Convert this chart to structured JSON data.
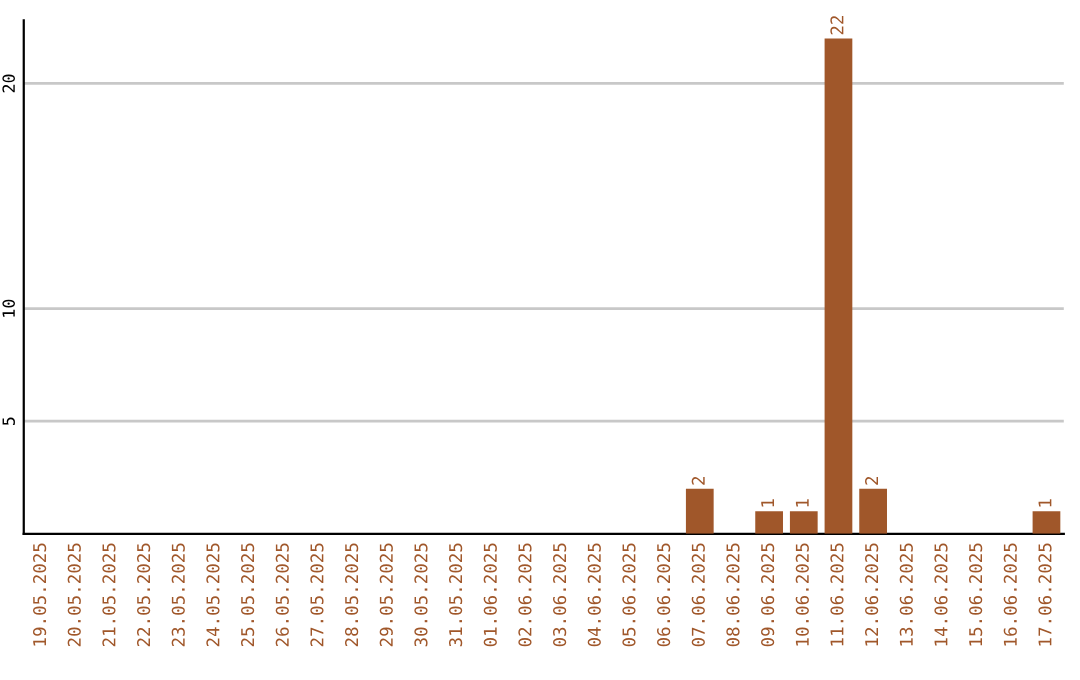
{
  "chart_data": {
    "type": "bar",
    "categories": [
      "19.05.2025",
      "20.05.2025",
      "21.05.2025",
      "22.05.2025",
      "23.05.2025",
      "24.05.2025",
      "25.05.2025",
      "26.05.2025",
      "27.05.2025",
      "28.05.2025",
      "29.05.2025",
      "30.05.2025",
      "31.05.2025",
      "01.06.2025",
      "02.06.2025",
      "03.06.2025",
      "04.06.2025",
      "05.06.2025",
      "06.06.2025",
      "07.06.2025",
      "08.06.2025",
      "09.06.2025",
      "10.06.2025",
      "11.06.2025",
      "12.06.2025",
      "13.06.2025",
      "14.06.2025",
      "15.06.2025",
      "16.06.2025",
      "17.06.2025"
    ],
    "values": [
      0,
      0,
      0,
      0,
      0,
      0,
      0,
      0,
      0,
      0,
      0,
      0,
      0,
      0,
      0,
      0,
      0,
      0,
      0,
      2,
      0,
      1,
      1,
      22,
      2,
      0,
      0,
      0,
      0,
      1
    ],
    "value_labels": [
      null,
      null,
      null,
      null,
      null,
      null,
      null,
      null,
      null,
      null,
      null,
      null,
      null,
      null,
      null,
      null,
      null,
      null,
      null,
      "2",
      null,
      "1",
      "1",
      "22",
      "2",
      null,
      null,
      null,
      null,
      "1"
    ],
    "color": "#a0572a",
    "ylim": [
      0,
      22.8
    ],
    "yticks": [
      5,
      10,
      20
    ],
    "grid": "y",
    "legend": false
  }
}
